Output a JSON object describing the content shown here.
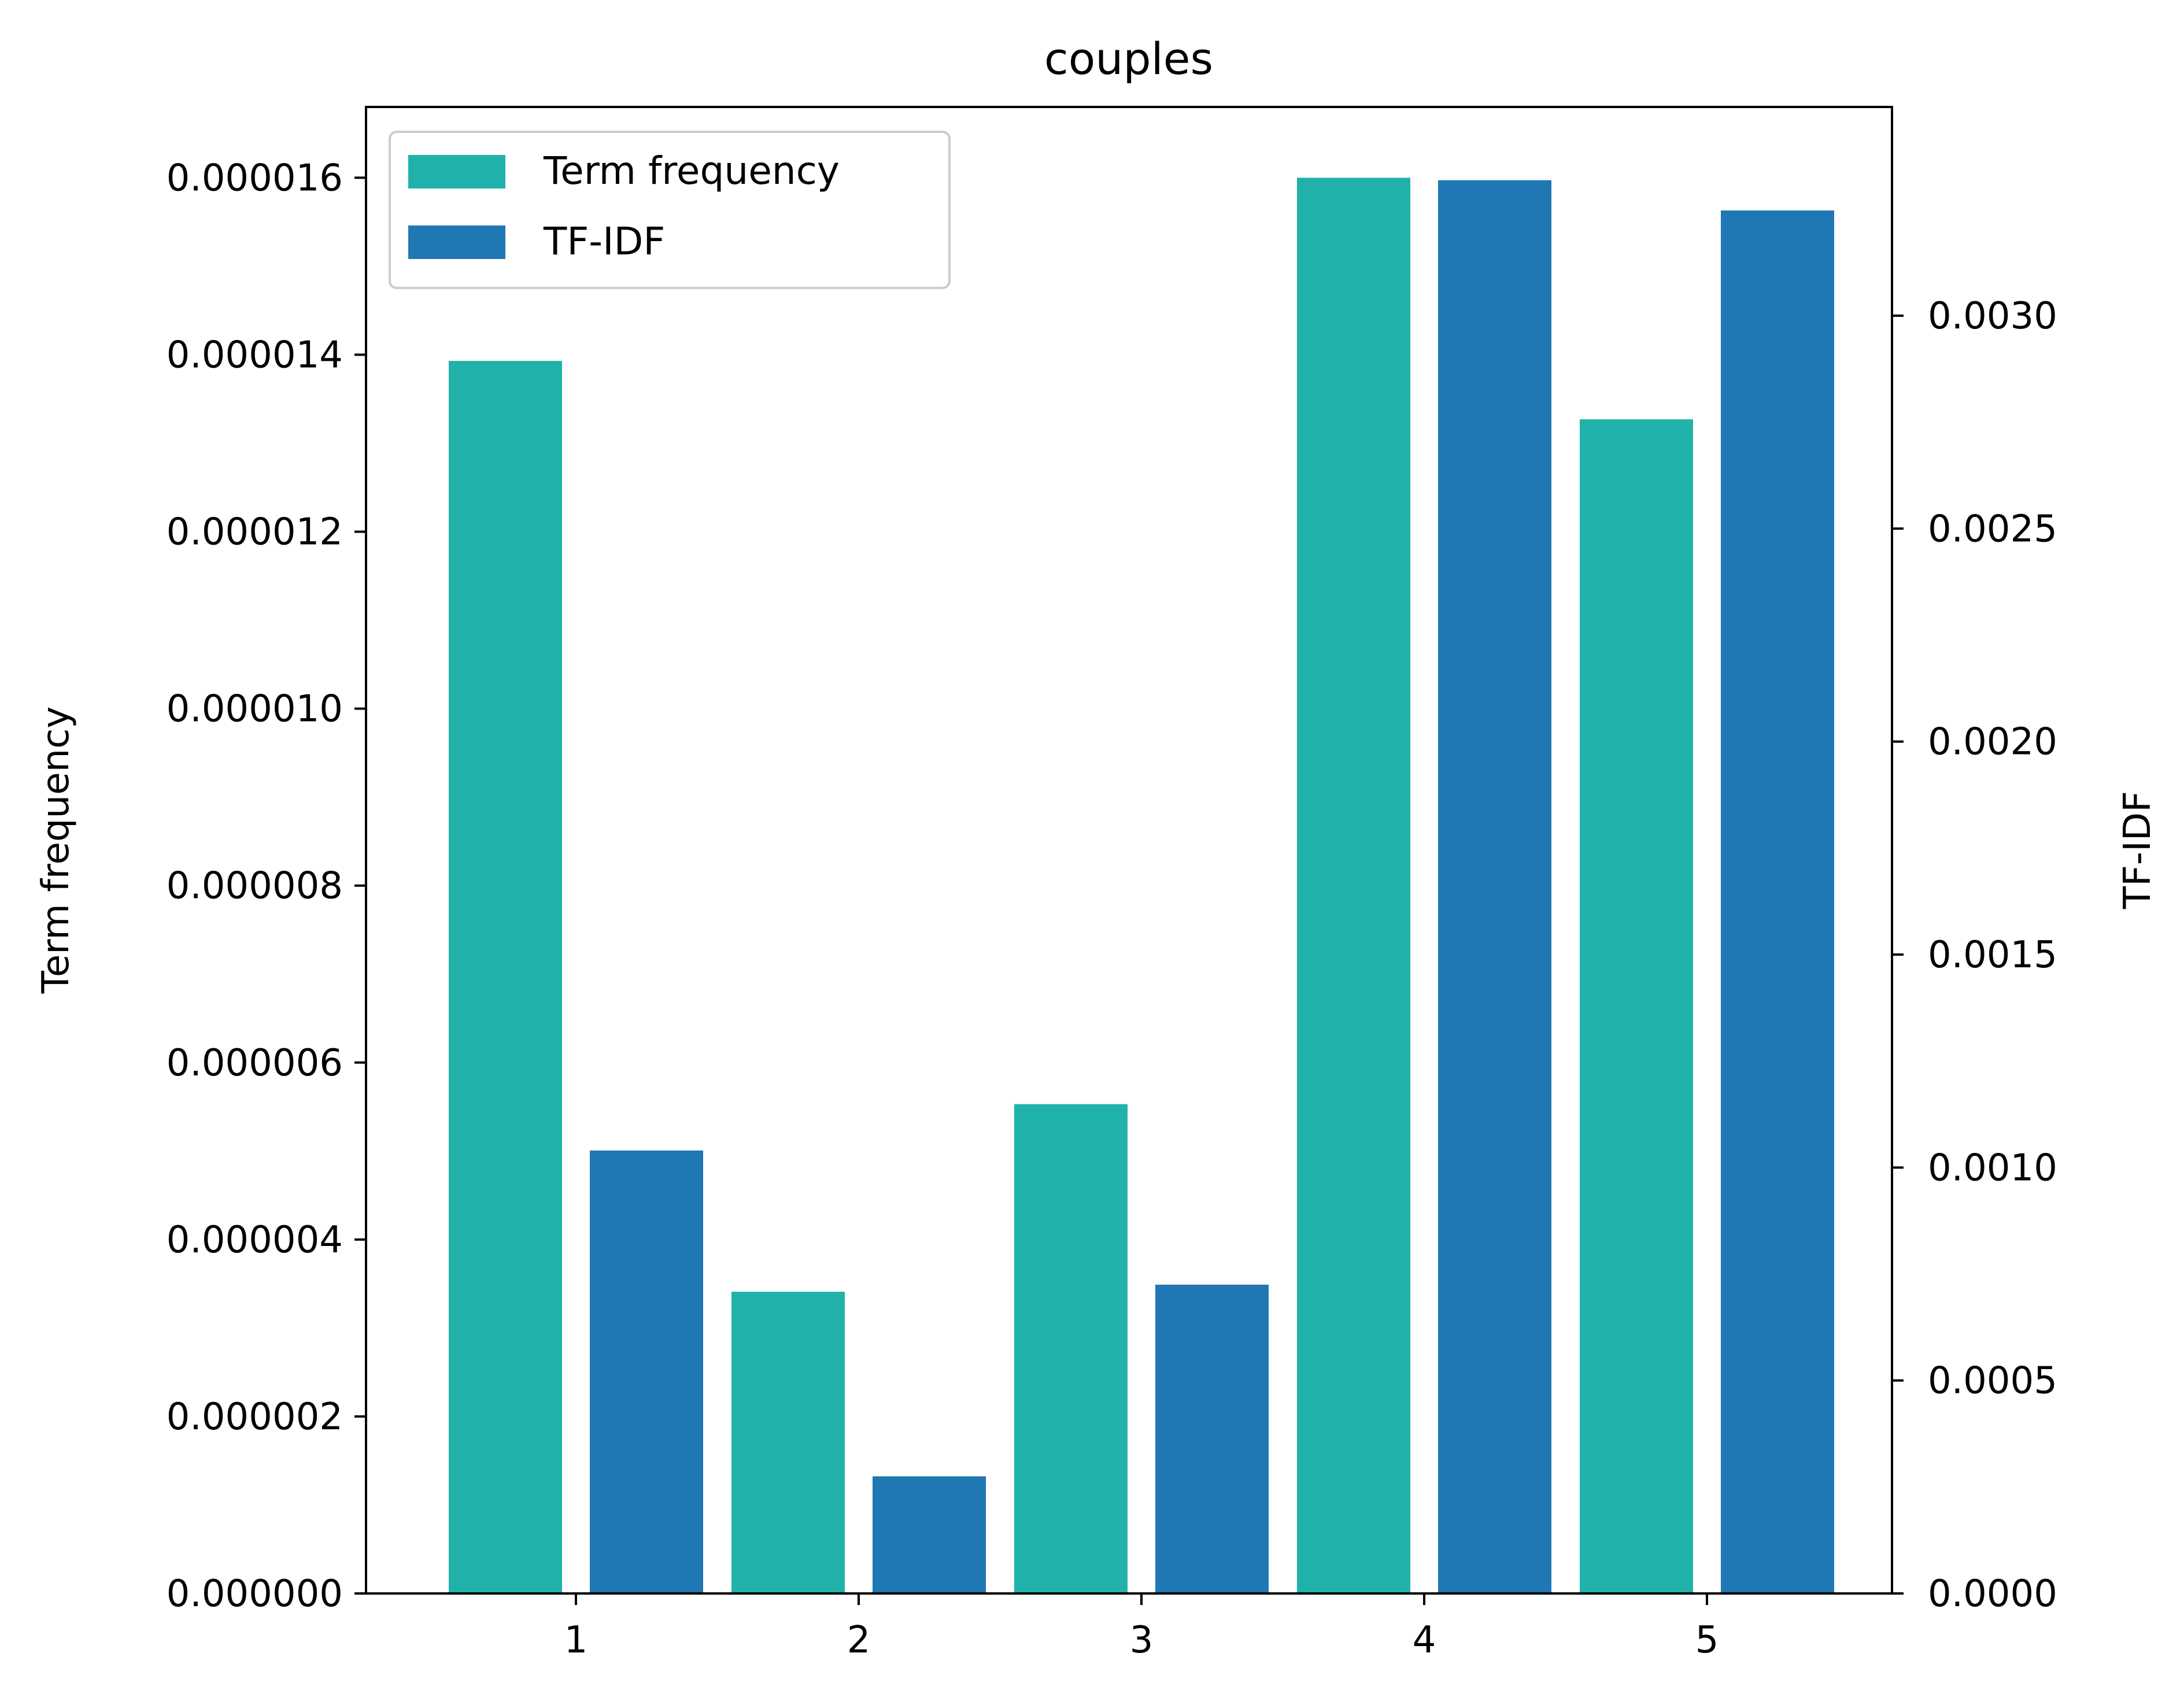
{
  "chart_data": {
    "type": "bar",
    "title": "couples",
    "categories": [
      "1",
      "2",
      "3",
      "4",
      "5"
    ],
    "series": [
      {
        "name": "Term frequency",
        "axis": "left",
        "color": "#20b2aa",
        "values": [
          1.393e-05,
          3.41e-06,
          5.53e-06,
          1.6e-05,
          1.327e-05
        ]
      },
      {
        "name": "TF-IDF",
        "axis": "right",
        "color": "#1f77b4",
        "values": [
          0.00104,
          0.000275,
          0.000725,
          0.003318,
          0.003247
        ]
      }
    ],
    "ylabel_left": "Term frequency",
    "ylabel_right": "TF-IDF",
    "ylim_left": [
      0,
      1.68e-05
    ],
    "ylim_right": [
      0,
      0.00349
    ],
    "yticks_left": [
      "0.000000",
      "0.000002",
      "0.000004",
      "0.000006",
      "0.000008",
      "0.000010",
      "0.000012",
      "0.000014",
      "0.000016"
    ],
    "yticks_right": [
      "0.0000",
      "0.0005",
      "0.0010",
      "0.0015",
      "0.0020",
      "0.0025",
      "0.0030"
    ],
    "grid": false,
    "legend_position": "top-left"
  }
}
